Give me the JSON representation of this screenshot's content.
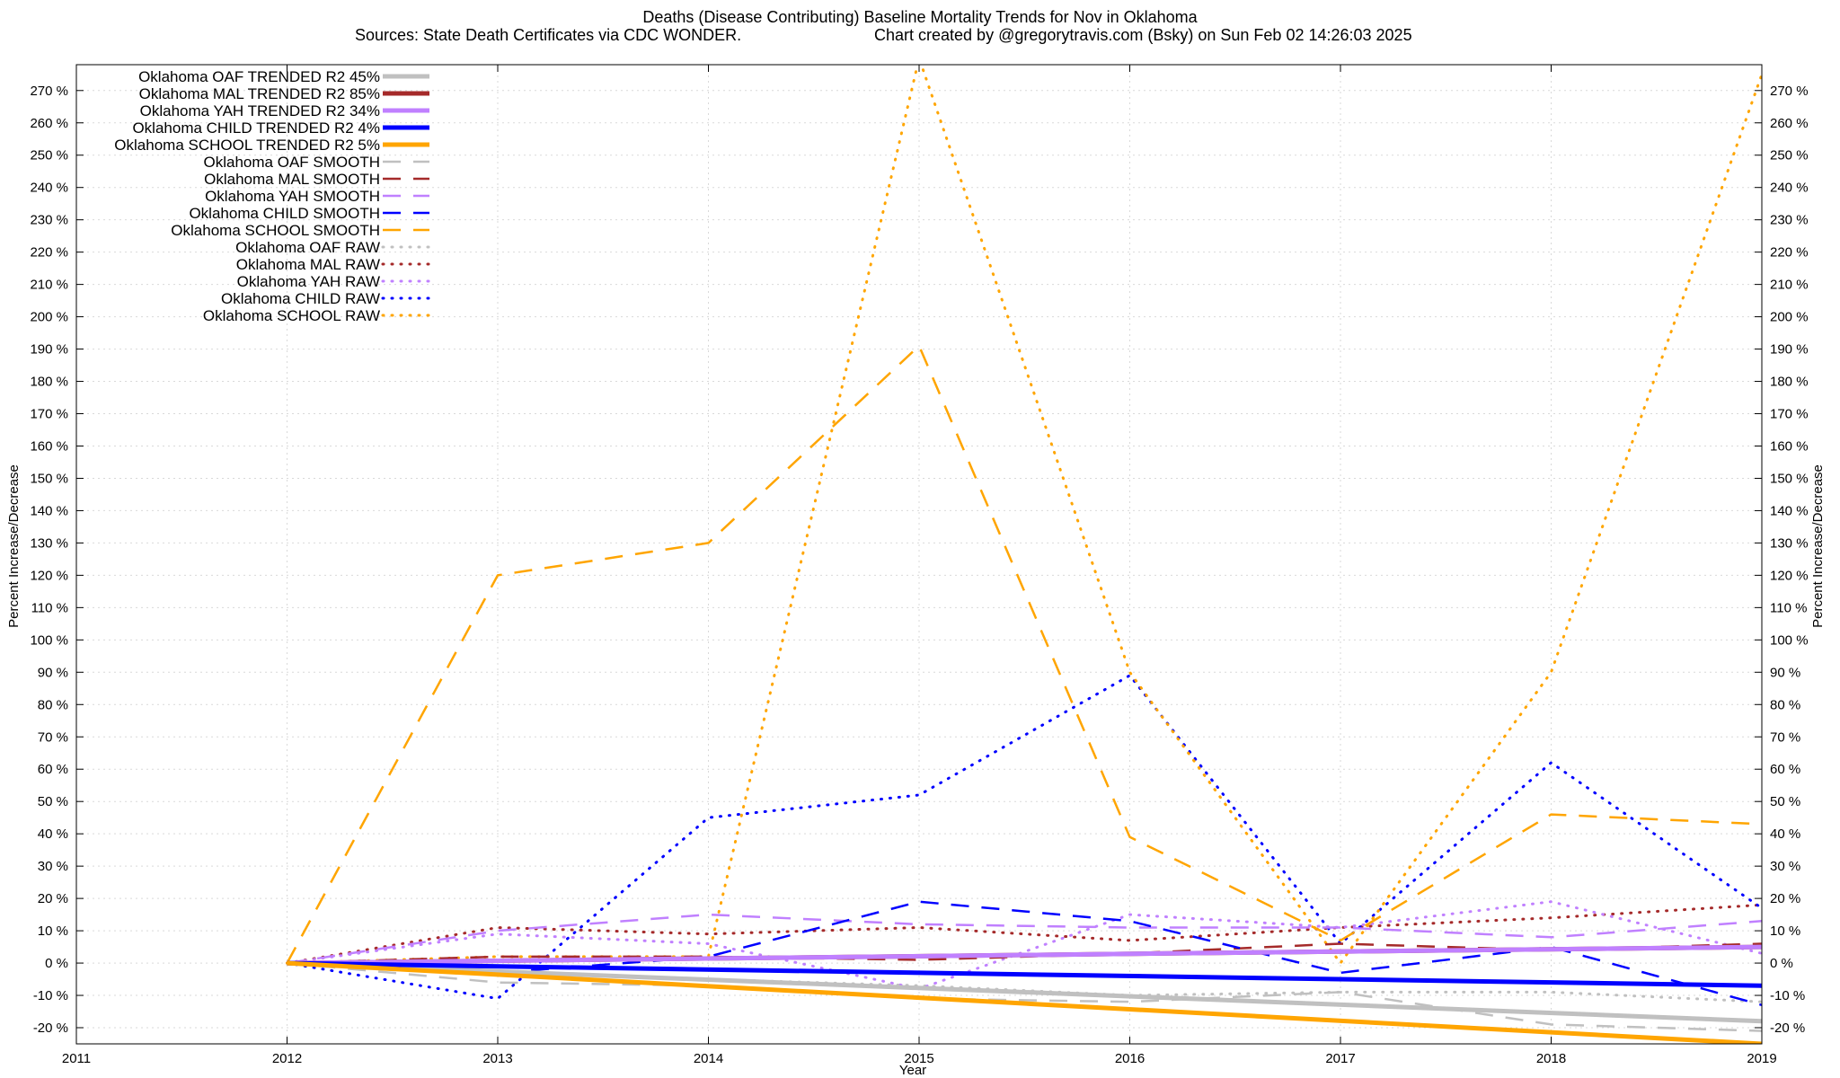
{
  "chart_data": {
    "type": "line",
    "title": "Deaths (Disease Contributing)  Baseline Mortality Trends for Nov in Oklahoma",
    "subtitle_left": "Sources: State Death Certificates via CDC WONDER.",
    "subtitle_right": "Chart created by @gregorytravis.com (Bsky) on Sun Feb 02 14:26:03 2025",
    "xlabel": "Year",
    "ylabel_left": "Percent Increase/Decrease",
    "ylabel_right": "Percent Increase/Decrease",
    "xlim": [
      2011,
      2019
    ],
    "ylim": [
      -25,
      278
    ],
    "x_ticks": [
      2011,
      2012,
      2013,
      2014,
      2015,
      2016,
      2017,
      2018,
      2019
    ],
    "y_ticks": [
      -20,
      -10,
      0,
      10,
      20,
      30,
      40,
      50,
      60,
      70,
      80,
      90,
      100,
      110,
      120,
      130,
      140,
      150,
      160,
      170,
      180,
      190,
      200,
      210,
      220,
      230,
      240,
      250,
      260,
      270
    ],
    "y_tick_suffix": " %",
    "grid": true,
    "legend_position": "top-left",
    "colors": {
      "OAF": "#c0c0c0",
      "MAL": "#a52a2a",
      "YAH": "#c080ff",
      "CHILD": "#0000ff",
      "SCHOOL": "#ffa500"
    },
    "series": [
      {
        "name": "Oklahoma OAF TRENDED R2  45%",
        "group": "OAF",
        "style": "trended",
        "x": [
          2012,
          2019
        ],
        "y": [
          0,
          -18
        ]
      },
      {
        "name": "Oklahoma MAL TRENDED R2  85%",
        "group": "MAL",
        "style": "trended",
        "x": [
          2012,
          2019
        ],
        "y": [
          0,
          5
        ]
      },
      {
        "name": "Oklahoma YAH TRENDED R2  34%",
        "group": "YAH",
        "style": "trended",
        "x": [
          2012,
          2019
        ],
        "y": [
          0,
          5
        ]
      },
      {
        "name": "Oklahoma CHILD TRENDED R2   4%",
        "group": "CHILD",
        "style": "trended",
        "x": [
          2012,
          2019
        ],
        "y": [
          0,
          -7
        ]
      },
      {
        "name": "Oklahoma SCHOOL TRENDED R2   5%",
        "group": "SCHOOL",
        "style": "trended",
        "x": [
          2012,
          2019
        ],
        "y": [
          0,
          -25
        ]
      },
      {
        "name": "Oklahoma OAF SMOOTH",
        "group": "OAF",
        "style": "smooth",
        "x": [
          2012,
          2013,
          2014,
          2015,
          2016,
          2017,
          2018,
          2019
        ],
        "y": [
          0,
          -6,
          -7,
          -11,
          -12,
          -9,
          -19,
          -21
        ]
      },
      {
        "name": "Oklahoma MAL SMOOTH",
        "group": "MAL",
        "style": "smooth",
        "x": [
          2012,
          2013,
          2014,
          2015,
          2016,
          2017,
          2018,
          2019
        ],
        "y": [
          0,
          2,
          2,
          1,
          3,
          6,
          4,
          6
        ]
      },
      {
        "name": "Oklahoma YAH SMOOTH",
        "group": "YAH",
        "style": "smooth",
        "x": [
          2012,
          2013,
          2014,
          2015,
          2016,
          2017,
          2018,
          2019
        ],
        "y": [
          0,
          10,
          15,
          12,
          11,
          11,
          8,
          13
        ]
      },
      {
        "name": "Oklahoma CHILD SMOOTH",
        "group": "CHILD",
        "style": "smooth",
        "x": [
          2012,
          2013,
          2014,
          2015,
          2016,
          2017,
          2018,
          2019
        ],
        "y": [
          0,
          -3,
          2,
          19,
          13,
          -3,
          5,
          -13
        ]
      },
      {
        "name": "Oklahoma SCHOOL SMOOTH",
        "group": "SCHOOL",
        "style": "smooth",
        "x": [
          2012,
          2013,
          2014,
          2015,
          2016,
          2017,
          2018,
          2019
        ],
        "y": [
          0,
          120,
          130,
          191,
          39,
          7,
          46,
          43
        ]
      },
      {
        "name": "Oklahoma OAF RAW",
        "group": "OAF",
        "style": "raw",
        "x": [
          2012,
          2013,
          2014,
          2015,
          2016,
          2017,
          2018,
          2019
        ],
        "y": [
          0,
          -3,
          -5,
          -7,
          -10,
          -9,
          -9,
          -12
        ]
      },
      {
        "name": "Oklahoma MAL RAW",
        "group": "MAL",
        "style": "raw",
        "x": [
          2012,
          2013,
          2014,
          2015,
          2016,
          2017,
          2018,
          2019
        ],
        "y": [
          0,
          11,
          9,
          11,
          7,
          11,
          14,
          18
        ]
      },
      {
        "name": "Oklahoma YAH RAW",
        "group": "YAH",
        "style": "raw",
        "x": [
          2012,
          2013,
          2014,
          2015,
          2016,
          2017,
          2018,
          2019
        ],
        "y": [
          0,
          9,
          6,
          -8,
          15,
          11,
          19,
          3
        ]
      },
      {
        "name": "Oklahoma CHILD RAW",
        "group": "CHILD",
        "style": "raw",
        "x": [
          2012,
          2013,
          2014,
          2015,
          2016,
          2017,
          2018,
          2019
        ],
        "y": [
          0,
          -11,
          45,
          52,
          89,
          6,
          62,
          17
        ]
      },
      {
        "name": "Oklahoma SCHOOL RAW",
        "group": "SCHOOL",
        "style": "raw",
        "x": [
          2012,
          2013,
          2014,
          2015,
          2016,
          2017,
          2018,
          2019
        ],
        "y": [
          0,
          2,
          2,
          280,
          90,
          0,
          90,
          275
        ]
      }
    ]
  }
}
